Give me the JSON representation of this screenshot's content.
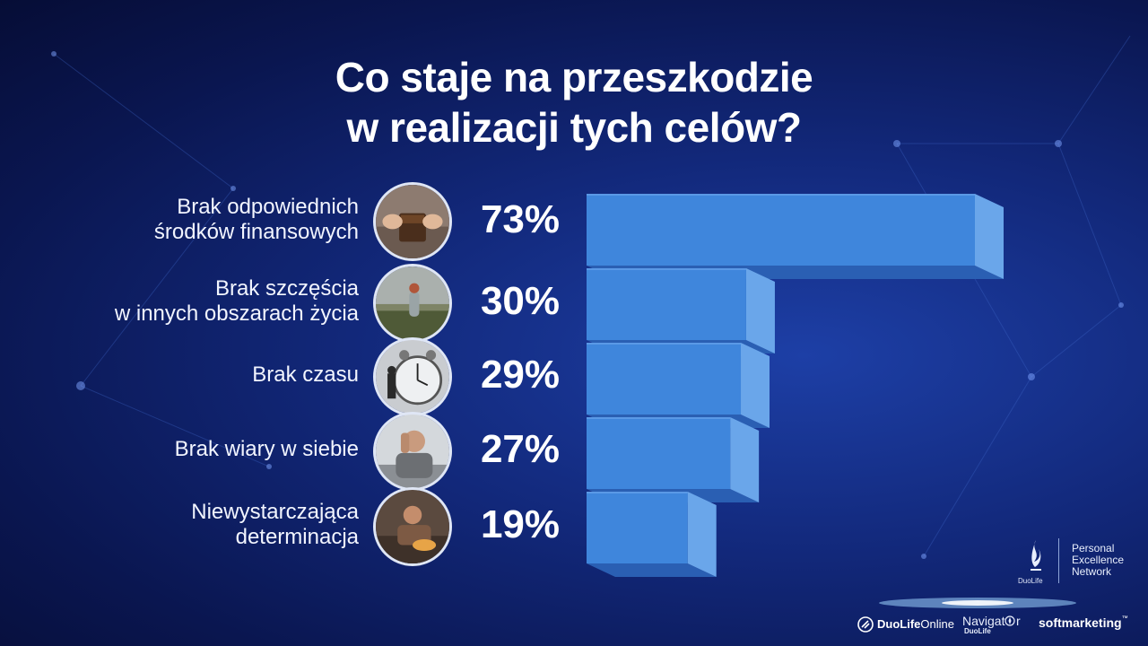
{
  "title_lines": [
    "Co staje na przeszkodzie",
    "w realizacji tych celów?"
  ],
  "chart_data": {
    "type": "bar",
    "orientation": "horizontal",
    "categories": [
      "Brak odpowiednich środków finansowych",
      "Brak szczęścia w innych obszarach życia",
      "Brak czasu",
      "Brak wiary w siebie",
      "Niewystarczająca determinacja"
    ],
    "values": [
      73,
      30,
      29,
      27,
      19
    ],
    "unit": "%",
    "style": "3d"
  },
  "rows": [
    {
      "label_lines": [
        "Brak odpowiednich",
        "środków finansowych"
      ],
      "percent": "73%",
      "photo": "wallet-photo"
    },
    {
      "label_lines": [
        "Brak szczęścia",
        "w innych obszarach życia"
      ],
      "percent": "30%",
      "photo": "girl-field-photo"
    },
    {
      "label_lines": [
        "Brak czasu"
      ],
      "percent": "29%",
      "photo": "alarm-clock-photo"
    },
    {
      "label_lines": [
        "Brak wiary w siebie"
      ],
      "percent": "27%",
      "photo": "worried-man-photo"
    },
    {
      "label_lines": [
        "Niewystarczająca",
        "determinacja"
      ],
      "percent": "19%",
      "photo": "lazy-man-photo"
    }
  ],
  "logos": {
    "duolife_small": "DuoLife",
    "pen_lines": [
      "Personal",
      "Excellence",
      "Network"
    ],
    "duolife_online_a": "DuoLife",
    "duolife_online_b": "Online",
    "navigator": "Navigat",
    "navigator_sub": "DuoLife",
    "softmarketing": "softmarketing",
    "softmarketing_tm": "™"
  },
  "colors": {
    "bar_front": "#3f86dc",
    "bar_side": "#6aa6ea",
    "bar_top": "#5a99e6",
    "bar_bottom": "#2a5fb3",
    "background": "#12287a"
  }
}
